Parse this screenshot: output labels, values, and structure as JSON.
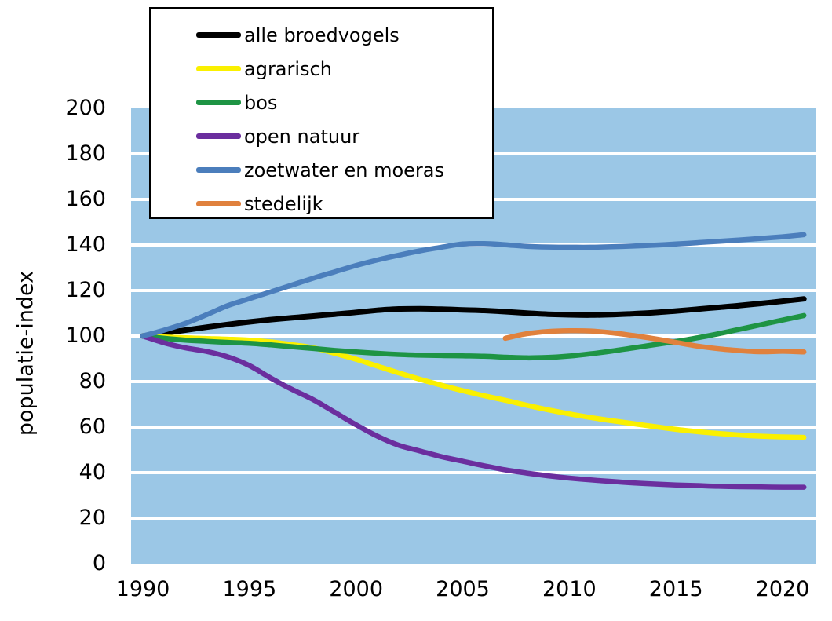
{
  "page": {
    "background": "#ffffff"
  },
  "plot": {
    "background": "#9BC7E6",
    "gridline_color": "#ffffff"
  },
  "y_axis": {
    "title": "populatie-index",
    "ticks": [
      0,
      20,
      40,
      60,
      80,
      100,
      120,
      140,
      160,
      180,
      200
    ],
    "range": [
      0,
      200
    ]
  },
  "x_axis": {
    "ticks": [
      1990,
      1995,
      2000,
      2005,
      2010,
      2015,
      2020
    ],
    "range_years": [
      1990,
      2021
    ]
  },
  "chart_data": {
    "type": "line",
    "title": "",
    "xlabel": "",
    "ylabel": "populatie-index",
    "ylim": [
      0,
      200
    ],
    "xlim": [
      1990,
      2021
    ],
    "grid": "horizontal white lines every 20",
    "legend_position": "top-left boxed",
    "baseline_note": "all series indexed to 100 in 1990; stedelijk indexed ~100 at 2007 start",
    "series": [
      {
        "name": "alle broedvogels",
        "color": "#000000",
        "points": [
          [
            1990,
            100
          ],
          [
            1991,
            101.3
          ],
          [
            1992,
            102.6
          ],
          [
            1993,
            103.9
          ],
          [
            1994,
            105.1
          ],
          [
            1995,
            106.2
          ],
          [
            1996,
            107.2
          ],
          [
            1997,
            108.0
          ],
          [
            1998,
            108.8
          ],
          [
            1999,
            109.6
          ],
          [
            2000,
            110.4
          ],
          [
            2001,
            111.3
          ],
          [
            2002,
            111.9
          ],
          [
            2003,
            112.0
          ],
          [
            2004,
            111.8
          ],
          [
            2005,
            111.5
          ],
          [
            2006,
            111.2
          ],
          [
            2007,
            110.7
          ],
          [
            2008,
            110.1
          ],
          [
            2009,
            109.6
          ],
          [
            2010,
            109.3
          ],
          [
            2011,
            109.2
          ],
          [
            2012,
            109.4
          ],
          [
            2013,
            109.8
          ],
          [
            2014,
            110.3
          ],
          [
            2015,
            111.0
          ],
          [
            2016,
            111.8
          ],
          [
            2017,
            112.6
          ],
          [
            2018,
            113.4
          ],
          [
            2019,
            114.3
          ],
          [
            2020,
            115.3
          ],
          [
            2021,
            116.3
          ]
        ]
      },
      {
        "name": "agrarisch",
        "color": "#FAF000",
        "points": [
          [
            1990,
            100
          ],
          [
            1991,
            99.6
          ],
          [
            1992,
            99.2
          ],
          [
            1993,
            98.9
          ],
          [
            1994,
            98.6
          ],
          [
            1995,
            98.2
          ],
          [
            1996,
            97.4
          ],
          [
            1997,
            96.2
          ],
          [
            1998,
            94.8
          ],
          [
            1999,
            92.4
          ],
          [
            2000,
            89.8
          ],
          [
            2001,
            86.8
          ],
          [
            2002,
            83.8
          ],
          [
            2003,
            81.0
          ],
          [
            2004,
            78.4
          ],
          [
            2005,
            76.0
          ],
          [
            2006,
            73.8
          ],
          [
            2007,
            71.8
          ],
          [
            2008,
            69.6
          ],
          [
            2009,
            67.6
          ],
          [
            2010,
            65.8
          ],
          [
            2011,
            64.2
          ],
          [
            2012,
            62.8
          ],
          [
            2013,
            61.5
          ],
          [
            2014,
            60.2
          ],
          [
            2015,
            59.0
          ],
          [
            2016,
            58.0
          ],
          [
            2017,
            57.2
          ],
          [
            2018,
            56.5
          ],
          [
            2019,
            56.0
          ],
          [
            2020,
            55.7
          ],
          [
            2021,
            55.5
          ]
        ]
      },
      {
        "name": "bos",
        "color": "#1E9444",
        "points": [
          [
            1990,
            100
          ],
          [
            1991,
            99.0
          ],
          [
            1992,
            98.2
          ],
          [
            1993,
            97.7
          ],
          [
            1994,
            97.2
          ],
          [
            1995,
            96.8
          ],
          [
            1996,
            96.1
          ],
          [
            1997,
            95.3
          ],
          [
            1998,
            94.5
          ],
          [
            1999,
            93.7
          ],
          [
            2000,
            93.0
          ],
          [
            2001,
            92.4
          ],
          [
            2002,
            91.9
          ],
          [
            2003,
            91.6
          ],
          [
            2004,
            91.4
          ],
          [
            2005,
            91.3
          ],
          [
            2006,
            91.1
          ],
          [
            2007,
            90.7
          ],
          [
            2008,
            90.4
          ],
          [
            2009,
            90.6
          ],
          [
            2010,
            91.2
          ],
          [
            2011,
            92.2
          ],
          [
            2012,
            93.4
          ],
          [
            2013,
            94.8
          ],
          [
            2014,
            96.2
          ],
          [
            2015,
            97.6
          ],
          [
            2016,
            99.2
          ],
          [
            2017,
            101.0
          ],
          [
            2018,
            103.0
          ],
          [
            2019,
            105.0
          ],
          [
            2020,
            107.0
          ],
          [
            2021,
            109.0
          ]
        ]
      },
      {
        "name": "open natuur",
        "color": "#6B2E9E",
        "points": [
          [
            1990,
            100
          ],
          [
            1991,
            97.0
          ],
          [
            1992,
            94.8
          ],
          [
            1993,
            93.2
          ],
          [
            1994,
            90.8
          ],
          [
            1995,
            87.0
          ],
          [
            1996,
            81.5
          ],
          [
            1997,
            76.5
          ],
          [
            1998,
            72.0
          ],
          [
            1999,
            66.5
          ],
          [
            2000,
            61.0
          ],
          [
            2001,
            56.0
          ],
          [
            2002,
            52.0
          ],
          [
            2003,
            49.5
          ],
          [
            2004,
            47.0
          ],
          [
            2005,
            45.0
          ],
          [
            2006,
            43.0
          ],
          [
            2007,
            41.2
          ],
          [
            2008,
            39.8
          ],
          [
            2009,
            38.6
          ],
          [
            2010,
            37.6
          ],
          [
            2011,
            36.8
          ],
          [
            2012,
            36.1
          ],
          [
            2013,
            35.5
          ],
          [
            2014,
            35.0
          ],
          [
            2015,
            34.6
          ],
          [
            2016,
            34.3
          ],
          [
            2017,
            34.0
          ],
          [
            2018,
            33.8
          ],
          [
            2019,
            33.7
          ],
          [
            2020,
            33.6
          ],
          [
            2021,
            33.6
          ]
        ]
      },
      {
        "name": "zoetwater en moeras",
        "color": "#4B7EBC",
        "points": [
          [
            1990,
            100
          ],
          [
            1991,
            102.6
          ],
          [
            1992,
            105.6
          ],
          [
            1993,
            109.4
          ],
          [
            1994,
            113.4
          ],
          [
            1995,
            116.4
          ],
          [
            1996,
            119.4
          ],
          [
            1997,
            122.4
          ],
          [
            1998,
            125.4
          ],
          [
            1999,
            128.2
          ],
          [
            2000,
            131.0
          ],
          [
            2001,
            133.4
          ],
          [
            2002,
            135.5
          ],
          [
            2003,
            137.4
          ],
          [
            2004,
            139.0
          ],
          [
            2005,
            140.4
          ],
          [
            2006,
            140.6
          ],
          [
            2007,
            140.1
          ],
          [
            2008,
            139.4
          ],
          [
            2009,
            139.1
          ],
          [
            2010,
            139.0
          ],
          [
            2011,
            139.0
          ],
          [
            2012,
            139.2
          ],
          [
            2013,
            139.5
          ],
          [
            2014,
            139.9
          ],
          [
            2015,
            140.4
          ],
          [
            2016,
            141.0
          ],
          [
            2017,
            141.6
          ],
          [
            2018,
            142.2
          ],
          [
            2019,
            142.9
          ],
          [
            2020,
            143.6
          ],
          [
            2021,
            144.5
          ]
        ]
      },
      {
        "name": "stedelijk",
        "color": "#E0813D",
        "points": [
          [
            2007,
            99.0
          ],
          [
            2008,
            101.0
          ],
          [
            2009,
            102.0
          ],
          [
            2010,
            102.3
          ],
          [
            2011,
            102.2
          ],
          [
            2012,
            101.4
          ],
          [
            2013,
            100.2
          ],
          [
            2014,
            98.8
          ],
          [
            2015,
            97.2
          ],
          [
            2016,
            95.6
          ],
          [
            2017,
            94.4
          ],
          [
            2018,
            93.6
          ],
          [
            2019,
            93.1
          ],
          [
            2020,
            93.3
          ],
          [
            2021,
            93.0
          ]
        ]
      }
    ]
  }
}
